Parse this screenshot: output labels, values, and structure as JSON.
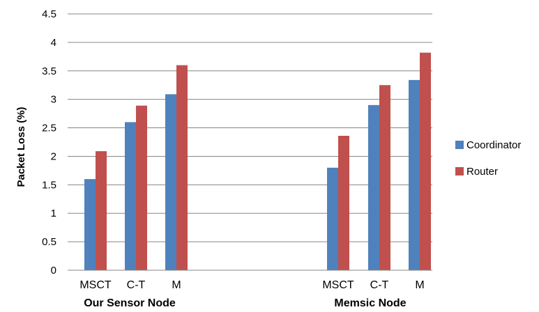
{
  "chart_data": {
    "type": "bar",
    "ylabel": "Packet Loss (%)",
    "ylim": [
      0,
      4.5
    ],
    "yticks": [
      "0",
      "0.5",
      "1",
      "1.5",
      "2",
      "2.5",
      "3",
      "3.5",
      "4",
      "4.5"
    ],
    "grid": true,
    "legend_position": "right",
    "groups": [
      {
        "label": "Our Sensor Node",
        "categories": [
          "MSCT",
          "C-T",
          "M"
        ]
      },
      {
        "label": "Memsic Node",
        "categories": [
          "MSCT",
          "C-T",
          "M"
        ]
      }
    ],
    "series": [
      {
        "name": "Coordinator",
        "color": "#4F81BD",
        "values": [
          [
            1.6,
            2.6,
            3.09
          ],
          [
            1.8,
            2.9,
            3.34
          ]
        ]
      },
      {
        "name": "Router",
        "color": "#C0504D",
        "values": [
          [
            2.09,
            2.89,
            3.6
          ],
          [
            2.36,
            3.25,
            3.82
          ]
        ]
      }
    ]
  }
}
